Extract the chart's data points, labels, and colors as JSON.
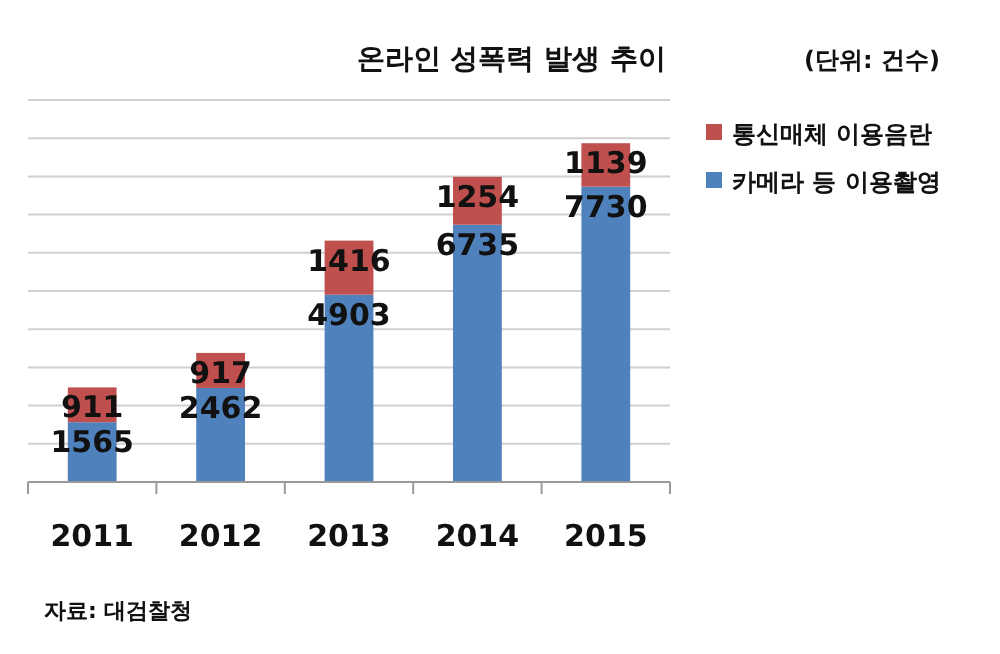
{
  "chart_data": {
    "type": "bar",
    "title": "온라인 성폭력 발생 추이",
    "stacked": true,
    "categories": [
      "2011",
      "2012",
      "2013",
      "2014",
      "2015"
    ],
    "series": [
      {
        "name": "카메라 등 이용촬영",
        "color": "#4f81bd",
        "values": [
          1565,
          2462,
          4903,
          6735,
          7730
        ]
      },
      {
        "name": "통신매체 이용음란",
        "color": "#c0504d",
        "values": [
          911,
          917,
          1416,
          1254,
          1139
        ]
      }
    ],
    "ylim": [
      0,
      10000
    ],
    "yticks": [
      {
        "value": 0,
        "label": null
      },
      {
        "value": 1000,
        "label": null
      },
      {
        "value": 2000,
        "label": null
      },
      {
        "value": 3000,
        "label": null
      },
      {
        "value": 4000,
        "label": null
      },
      {
        "value": 5000,
        "label": null
      },
      {
        "value": 6000,
        "label": null
      },
      {
        "value": 7000,
        "label": null
      },
      {
        "value": 8000,
        "label": null
      },
      {
        "value": 9000,
        "label": null
      },
      {
        "value": 10000,
        "label": null
      }
    ],
    "grid": "y",
    "legend": "top right",
    "data_labels": true,
    "annotations": [
      "(단위: 건수)",
      "자료: 대검찰청"
    ]
  }
}
